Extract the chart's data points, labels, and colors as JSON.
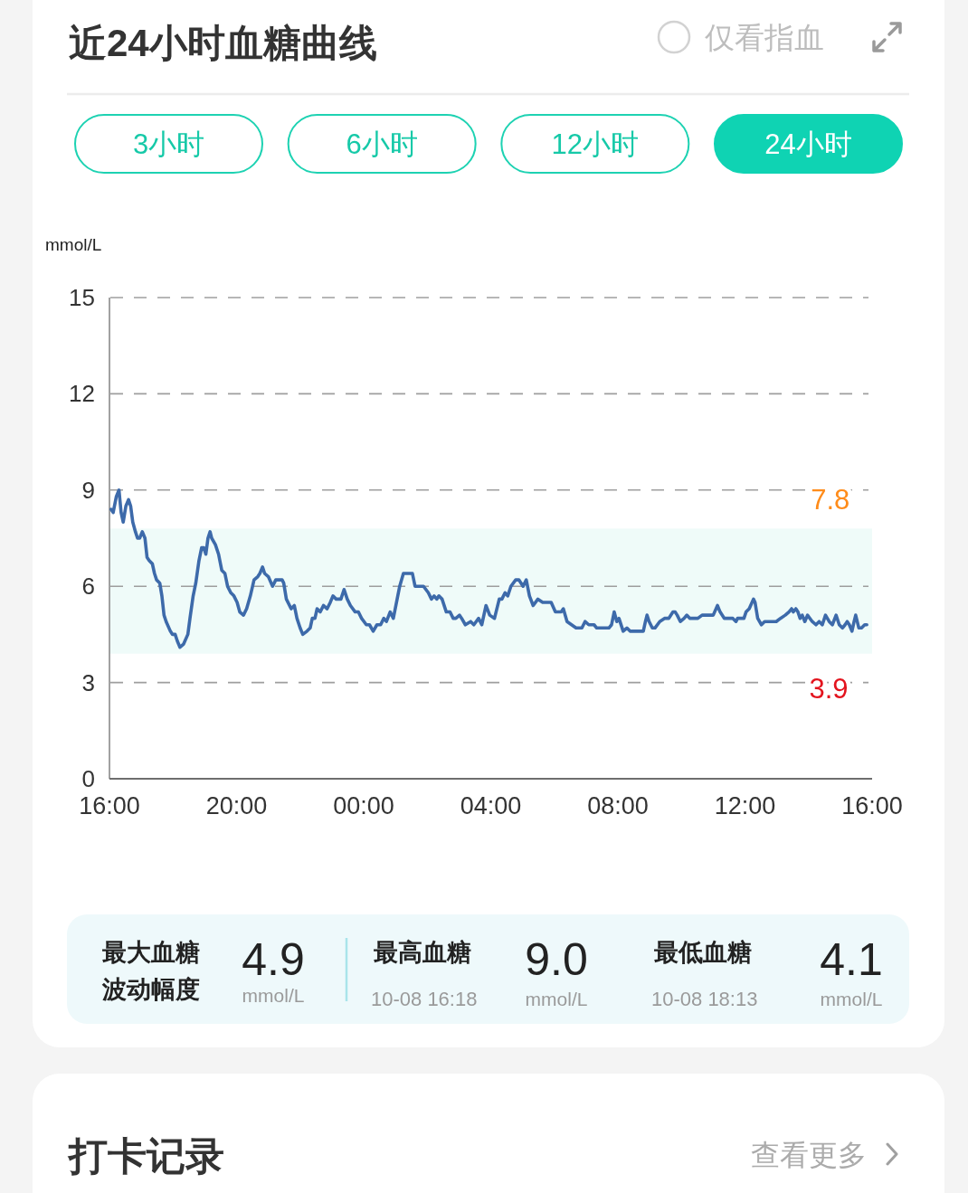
{
  "chart_data": [
    {
      "type": "line",
      "title": "近24小时血糖曲线",
      "ylabel": "mmol/L",
      "annotations": [
        "仅看指血",
        "3小时",
        "6小时",
        "12小时",
        "24小时",
        {
          "text": "7.8",
          "x": "--10-09T14:41",
          "y": 7.8
        },
        {
          "text": "3.9",
          "x": "--10-09T14:38",
          "y": 3.9
        }
      ],
      "color": "#3d6aaa",
      "x": [
        "--10-08T16:03",
        "--10-08T16:07",
        "--10-08T16:13",
        "--10-08T16:18",
        "--10-08T16:22",
        "--10-08T16:26",
        "--10-08T16:31",
        "--10-08T16:36",
        "--10-08T16:40",
        "--10-08T16:44",
        "--10-08T16:49",
        "--10-08T16:53",
        "--10-08T16:57",
        "--10-08T17:02",
        "--10-08T17:07",
        "--10-08T17:11",
        "--10-08T17:15",
        "--10-08T17:21",
        "--10-08T17:25",
        "--10-08T17:29",
        "--10-08T17:35",
        "--10-08T17:39",
        "--10-08T17:43",
        "--10-08T17:47",
        "--10-08T17:55",
        "--10-08T17:59",
        "--10-08T18:04",
        "--10-08T18:08",
        "--10-08T18:13",
        "--10-08T18:20",
        "--10-08T18:28",
        "--10-08T18:32",
        "--10-08T18:38",
        "--10-08T18:43",
        "--10-08T18:49",
        "--10-08T18:54",
        "--10-08T18:58",
        "--10-08T19:02",
        "--10-08T19:06",
        "--10-08T19:10",
        "--10-08T19:13",
        "--10-08T19:20",
        "--10-08T19:26",
        "--10-08T19:32",
        "--10-08T19:38",
        "--10-08T19:43",
        "--10-08T19:49",
        "--10-08T19:55",
        "--10-08T20:01",
        "--10-08T20:06",
        "--10-08T20:13",
        "--10-08T20:19",
        "--10-08T20:26",
        "--10-08T20:33",
        "--10-08T20:40",
        "--10-08T20:44",
        "--10-08T20:49",
        "--10-08T20:53",
        "--10-08T21:00",
        "--10-08T21:08",
        "--10-08T21:14",
        "--10-08T21:26",
        "--10-08T21:29",
        "--10-08T21:34",
        "--10-08T21:43",
        "--10-08T21:49",
        "--10-08T21:54",
        "--10-08T22:00",
        "--10-08T22:05",
        "--10-08T22:13",
        "--10-08T22:19",
        "--10-08T22:23",
        "--10-08T22:28",
        "--10-08T22:32",
        "--10-08T22:38",
        "--10-08T22:44",
        "--10-08T22:51",
        "--10-08T22:57",
        "--10-08T23:02",
        "--10-08T23:08",
        "--10-08T23:17",
        "--10-08T23:23",
        "--10-08T23:29",
        "--10-08T23:35",
        "--10-08T23:44",
        "--10-08T23:50",
        "--10-08T23:56",
        "--10-09T00:05",
        "--10-09T00:11",
        "--10-09T00:18",
        "--10-09T00:25",
        "--10-09T00:32",
        "--10-09T00:38",
        "--10-09T00:43",
        "--10-09T00:50",
        "--10-09T00:56",
        "--10-09T01:02",
        "--10-09T01:08",
        "--10-09T01:15",
        "--10-09T01:22",
        "--10-09T01:32",
        "--10-09T01:37",
        "--10-09T01:44",
        "--10-09T01:53",
        "--10-09T02:02",
        "--10-09T02:08",
        "--10-09T02:13",
        "--10-09T02:18",
        "--10-09T02:22",
        "--10-09T02:28",
        "--10-09T02:36",
        "--10-09T02:43",
        "--10-09T02:49",
        "--10-09T02:54",
        "--10-09T03:01",
        "--10-09T03:05",
        "--10-09T03:12",
        "--10-09T03:22",
        "--10-09T03:28",
        "--10-09T03:37",
        "--10-09T03:43",
        "--10-09T03:51",
        "--10-09T03:58",
        "--10-09T04:07",
        "--10-09T04:16",
        "--10-09T04:21",
        "--10-09T04:27",
        "--10-09T04:32",
        "--10-09T04:38",
        "--10-09T04:47",
        "--10-09T04:53",
        "--10-09T05:01",
        "--10-09T05:07",
        "--10-09T05:13",
        "--10-09T05:20",
        "--10-09T05:29",
        "--10-09T05:38",
        "--10-09T05:45",
        "--10-09T05:54",
        "--10-09T06:02",
        "--10-09T06:13",
        "--10-09T06:17",
        "--10-09T06:24",
        "--10-09T06:41",
        "--10-09T06:52",
        "--10-09T06:58",
        "--10-09T07:05",
        "--10-09T07:15",
        "--10-09T07:20",
        "--10-09T07:43",
        "--10-09T07:48",
        "--10-09T07:53",
        "--10-09T07:58",
        "--10-09T08:02",
        "--10-09T08:10",
        "--10-09T08:17",
        "--10-09T08:23",
        "--10-09T08:48",
        "--10-09T08:52",
        "--10-09T08:55",
        "--10-09T08:59",
        "--10-09T09:05",
        "--10-09T09:10",
        "--10-09T09:19",
        "--10-09T09:28",
        "--10-09T09:36",
        "--10-09T09:44",
        "--10-09T09:48",
        "--10-09T09:52",
        "--10-09T09:58",
        "--10-09T10:05",
        "--10-09T10:10",
        "--10-09T10:16",
        "--10-09T10:31",
        "--10-09T10:39",
        "--10-09T11:00",
        "--10-09T11:08",
        "--10-09T11:13",
        "--10-09T11:21",
        "--10-09T11:26",
        "--10-09T11:37",
        "--10-09T11:43",
        "--10-09T11:46",
        "--10-09T11:58",
        "--10-09T12:02",
        "--10-09T12:08",
        "--10-09T12:16",
        "--10-09T12:19",
        "--10-09T12:24",
        "--10-09T12:31",
        "--10-09T12:37",
        "--10-09T12:59",
        "--10-09T13:07",
        "--10-09T13:16",
        "--10-09T13:23",
        "--10-09T13:28",
        "--10-09T13:31",
        "--10-09T13:36",
        "--10-09T13:40",
        "--10-09T13:44",
        "--10-09T13:48",
        "--10-09T13:53",
        "--10-09T13:58",
        "--10-09T14:07",
        "--10-09T14:14",
        "--10-09T14:20",
        "--10-09T14:26",
        "--10-09T14:32",
        "--10-09T14:39",
        "--10-09T14:45",
        "--10-09T14:52",
        "--10-09T14:58",
        "--10-09T15:04",
        "--10-09T15:09",
        "--10-09T15:13",
        "--10-09T15:17",
        "--10-09T15:22",
        "--10-09T15:26",
        "--10-09T15:29",
        "--10-09T15:35",
        "--10-09T15:40",
        "--10-09T15:46",
        "--10-09T15:50"
      ],
      "values": [
        8.4,
        8.3,
        8.8,
        9.0,
        8.3,
        8.0,
        8.5,
        8.7,
        8.5,
        8.0,
        7.7,
        7.5,
        7.5,
        7.7,
        7.5,
        6.9,
        6.8,
        6.7,
        6.4,
        6.2,
        6.1,
        5.7,
        5.1,
        4.9,
        4.6,
        4.5,
        4.5,
        4.3,
        4.1,
        4.2,
        4.5,
        5.0,
        5.7,
        6.1,
        6.8,
        7.2,
        7.2,
        7.0,
        7.5,
        7.7,
        7.5,
        7.3,
        7.0,
        6.5,
        6.4,
        6.0,
        5.8,
        5.7,
        5.5,
        5.2,
        5.1,
        5.3,
        5.7,
        6.2,
        6.3,
        6.4,
        6.6,
        6.4,
        6.3,
        6.0,
        6.2,
        6.2,
        6.1,
        5.6,
        5.3,
        5.4,
        5.0,
        4.7,
        4.5,
        4.6,
        4.7,
        5.0,
        5.0,
        5.3,
        5.2,
        5.4,
        5.3,
        5.5,
        5.7,
        5.6,
        5.6,
        5.9,
        5.6,
        5.4,
        5.2,
        5.2,
        5.0,
        4.8,
        4.8,
        4.6,
        4.8,
        4.8,
        5.0,
        4.9,
        5.2,
        5.0,
        5.5,
        6.0,
        6.4,
        6.4,
        6.4,
        6.0,
        6.0,
        6.0,
        5.8,
        5.6,
        5.7,
        5.6,
        5.7,
        5.6,
        5.2,
        5.2,
        5.0,
        5.0,
        5.1,
        5.0,
        4.8,
        4.9,
        4.8,
        5.0,
        4.8,
        5.4,
        5.1,
        5.0,
        5.6,
        5.6,
        5.8,
        5.7,
        6.0,
        6.2,
        6.2,
        6.0,
        6.2,
        5.7,
        5.4,
        5.6,
        5.5,
        5.5,
        5.5,
        5.2,
        5.2,
        5.3,
        4.9,
        4.7,
        4.7,
        4.9,
        4.8,
        4.8,
        4.7,
        4.7,
        4.8,
        5.2,
        4.9,
        5.0,
        4.6,
        4.7,
        4.6,
        4.6,
        4.9,
        5.1,
        4.9,
        4.7,
        4.7,
        4.9,
        5.0,
        5.0,
        5.2,
        5.2,
        5.1,
        4.9,
        5.0,
        5.1,
        5.0,
        5.0,
        5.1,
        5.1,
        5.4,
        5.2,
        5.0,
        5.0,
        5.0,
        4.9,
        5.0,
        5.0,
        5.2,
        5.3,
        5.6,
        5.5,
        5.0,
        4.8,
        4.9,
        4.9,
        5.0,
        5.1,
        5.2,
        5.3,
        5.2,
        5.3,
        5.2,
        5.0,
        5.1,
        4.9,
        5.1,
        4.9,
        4.8,
        4.9,
        4.8,
        5.1,
        4.9,
        4.8,
        5.1,
        4.8,
        4.7,
        4.8,
        4.9,
        4.8,
        4.6,
        4.9,
        5.1,
        4.7,
        4.7,
        4.8,
        4.8
      ],
      "xlim": [
        "--10-08T16:00",
        "--10-09T16:00"
      ],
      "xticks": [
        {
          "value": "--10-08T16:00",
          "label": "16:00"
        },
        {
          "value": "--10-08T20:00",
          "label": "20:00"
        },
        {
          "value": "--10-09T00:00",
          "label": "00:00"
        },
        {
          "value": "--10-09T04:00",
          "label": "04:00"
        },
        {
          "value": "--10-09T08:00",
          "label": "08:00"
        },
        {
          "value": "--10-09T12:00",
          "label": "12:00"
        },
        {
          "value": "--10-09T16:00",
          "label": "16:00"
        }
      ],
      "ylim": [
        0,
        15
      ],
      "yticks": [
        0,
        3,
        6,
        9,
        12,
        15
      ],
      "grid": "y",
      "bands": [
        {
          "axis": "y",
          "from": 3.9,
          "to": 7.8,
          "color": "#effbf9"
        }
      ]
    },
    {
      "type": "other",
      "annotations": [
        "最大血糖",
        "波动幅度",
        "4.9",
        "mmol/L",
        "最高血糖",
        "10-08 16:18",
        "9.0",
        "mmol/L",
        "最低血糖",
        "10-08 18:13",
        "4.1",
        "mmol/L"
      ]
    },
    {
      "type": "other",
      "title": "打卡记录",
      "annotations": [
        "查看更多"
      ]
    }
  ]
}
